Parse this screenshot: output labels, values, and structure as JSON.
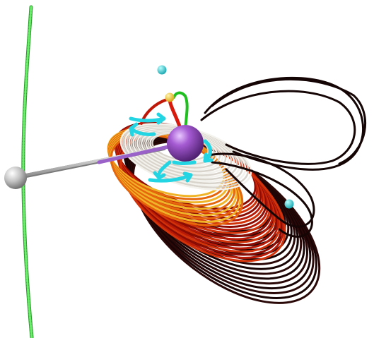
{
  "scene": {
    "background": "#ffffff",
    "colors": {
      "dark_loop": "#1a0606",
      "red_loop": "#b31408",
      "orange_loop": "#e0500a",
      "yellow_glow": "#f2d23a",
      "white_loop": "#eceae4",
      "arrow": "#28d8e6",
      "sphere_purple": "#9447c0",
      "sphere_grey": "#b8b8b8",
      "chain_green": "#3ec83e",
      "dot_cyan": "#1fd8d8",
      "dot_yellow": "#f5c400",
      "stem_red": "#e02010",
      "stem_green": "#20c020"
    },
    "icons": {
      "central_atom": "purple-sphere",
      "side_atom": "grey-sphere",
      "flow_arrows": "curved-arrows",
      "green_chain": "bead-chain"
    }
  }
}
